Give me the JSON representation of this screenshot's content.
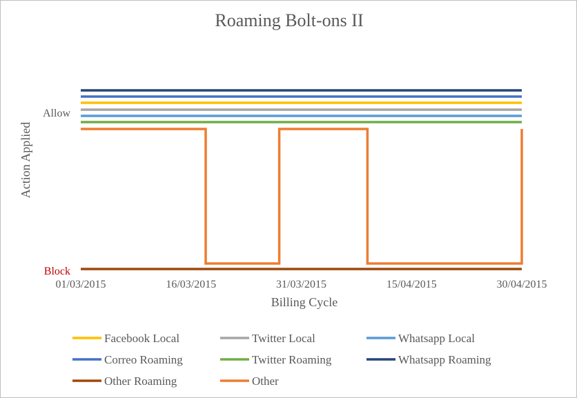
{
  "chart_data": {
    "type": "line",
    "title": "Roaming Bolt-ons II",
    "xlabel": "Billing Cycle",
    "ylabel": "Action Applied",
    "x_ticks": [
      "01/03/2015",
      "16/03/2015",
      "31/03/2015",
      "15/04/2015",
      "30/04/2015"
    ],
    "y_ticks": [
      {
        "label": "Allow",
        "color": "#595959"
      },
      {
        "label": "Block",
        "color": "#c00000"
      }
    ],
    "x_range": [
      "01/03/2015",
      "30/04/2015"
    ],
    "grid": false,
    "legend_position": "bottom",
    "series": [
      {
        "name": "Facebook Local",
        "color": "#ffc000",
        "points": [
          [
            "01/03/2015",
            "Allow"
          ],
          [
            "30/04/2015",
            "Allow"
          ]
        ]
      },
      {
        "name": "Twitter Local",
        "color": "#a5a5a5",
        "points": [
          [
            "01/03/2015",
            "Allow"
          ],
          [
            "30/04/2015",
            "Allow"
          ]
        ]
      },
      {
        "name": "Whatsapp Local",
        "color": "#5b9bd5",
        "points": [
          [
            "01/03/2015",
            "Allow"
          ],
          [
            "30/04/2015",
            "Allow"
          ]
        ]
      },
      {
        "name": "Correo Roaming",
        "color": "#4472c4",
        "points": [
          [
            "01/03/2015",
            "Allow"
          ],
          [
            "30/04/2015",
            "Allow"
          ]
        ]
      },
      {
        "name": "Twitter Roaming",
        "color": "#70ad47",
        "points": [
          [
            "01/03/2015",
            "Allow"
          ],
          [
            "30/04/2015",
            "Allow"
          ]
        ]
      },
      {
        "name": "Whatsapp Roaming",
        "color": "#264478",
        "points": [
          [
            "01/03/2015",
            "Allow"
          ],
          [
            "30/04/2015",
            "Allow"
          ]
        ]
      },
      {
        "name": "Other Roaming",
        "color": "#9e480e",
        "points": [
          [
            "01/03/2015",
            "Block"
          ],
          [
            "30/04/2015",
            "Block"
          ]
        ]
      },
      {
        "name": "Other",
        "color": "#ed7d31",
        "points": [
          [
            "01/03/2015",
            "Allow"
          ],
          [
            "18/03/2015",
            "Allow"
          ],
          [
            "18/03/2015",
            "Block"
          ],
          [
            "28/03/2015",
            "Block"
          ],
          [
            "28/03/2015",
            "Allow"
          ],
          [
            "09/04/2015",
            "Allow"
          ],
          [
            "09/04/2015",
            "Block"
          ],
          [
            "30/04/2015",
            "Block"
          ],
          [
            "30/04/2015",
            "Allow"
          ]
        ]
      }
    ]
  }
}
